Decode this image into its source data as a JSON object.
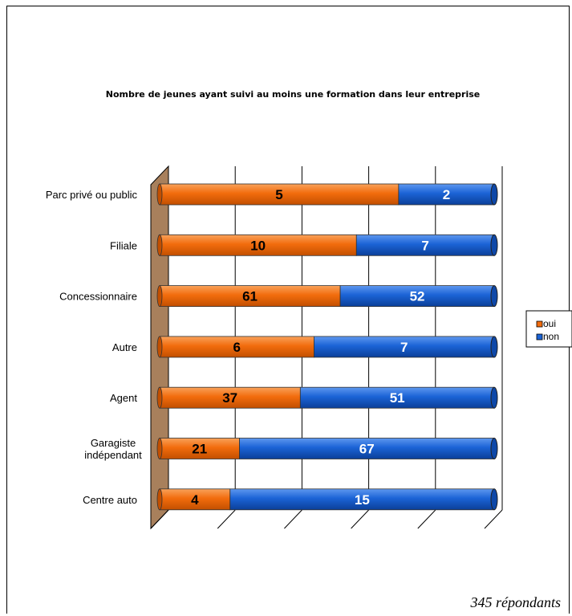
{
  "chart_data": {
    "type": "bar",
    "orientation": "horizontal",
    "stacked": "percent",
    "title": "Nombre de jeunes ayant suivi au moins une formation  dans leur entreprise",
    "categories": [
      "Parc privé ou public",
      "Filiale",
      "Concessionnaire",
      "Autre",
      "Agent",
      "Garagiste indépendant",
      "Centre auto"
    ],
    "category_lines": [
      [
        "Parc privé ou public"
      ],
      [
        "Filiale"
      ],
      [
        "Concessionnaire"
      ],
      [
        "Autre"
      ],
      [
        "Agent"
      ],
      [
        "Garagiste",
        "indépendant"
      ],
      [
        "Centre auto"
      ]
    ],
    "series": [
      {
        "name": "oui",
        "color": "#f26c0d",
        "values": [
          5,
          10,
          61,
          6,
          37,
          21,
          4
        ]
      },
      {
        "name": "non",
        "color": "#1b63d6",
        "values": [
          2,
          7,
          52,
          7,
          51,
          67,
          15
        ]
      }
    ],
    "legend_position": "right",
    "grid": true,
    "xlabel": "",
    "ylabel": ""
  },
  "footer_note": "345 répondants"
}
